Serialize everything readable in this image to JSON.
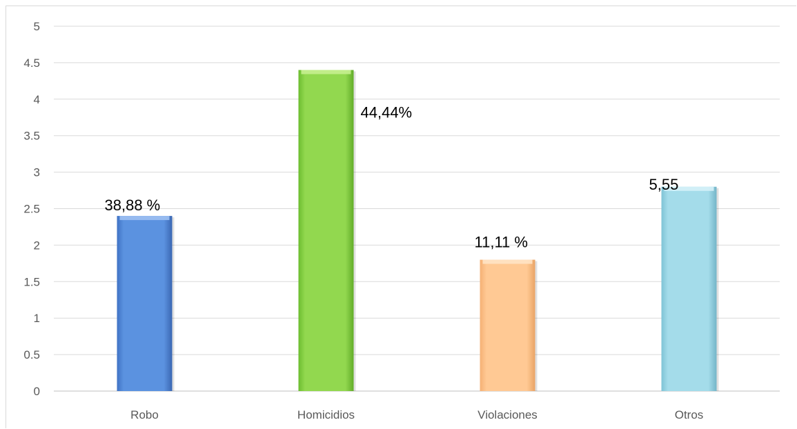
{
  "chart_data": {
    "type": "bar",
    "categories": [
      "Robo",
      "Homicidios",
      "Violaciones",
      "Otros"
    ],
    "values": [
      2.4,
      4.4,
      1.8,
      2.8
    ],
    "data_labels": [
      "38,88 %",
      "44,44%",
      "11,11 %",
      "5,55"
    ],
    "ylim": [
      0,
      5
    ],
    "yticks": [
      "0",
      "0.5",
      "1",
      "1.5",
      "2",
      "2.5",
      "3",
      "3.5",
      "4",
      "4.5",
      "5"
    ],
    "grid": true,
    "legend": "none",
    "title": "",
    "xlabel": "",
    "ylabel": ""
  },
  "colors": {
    "bars": [
      {
        "left": "#3f72c4",
        "mid": "#5b92e0",
        "right": "#3a67b3",
        "top": "#9dc0f2"
      },
      {
        "left": "#6cbd30",
        "mid": "#92d84f",
        "right": "#62ad2a",
        "top": "#c6f08f"
      },
      {
        "left": "#f5b074",
        "mid": "#ffc994",
        "right": "#e9a465",
        "top": "#ffe3c4"
      },
      {
        "left": "#7fc3d6",
        "mid": "#a4dcea",
        "right": "#74b5c8",
        "top": "#d6f1f8"
      }
    ],
    "grid": "#d9d9d9",
    "axis": "#bfbfbf"
  }
}
